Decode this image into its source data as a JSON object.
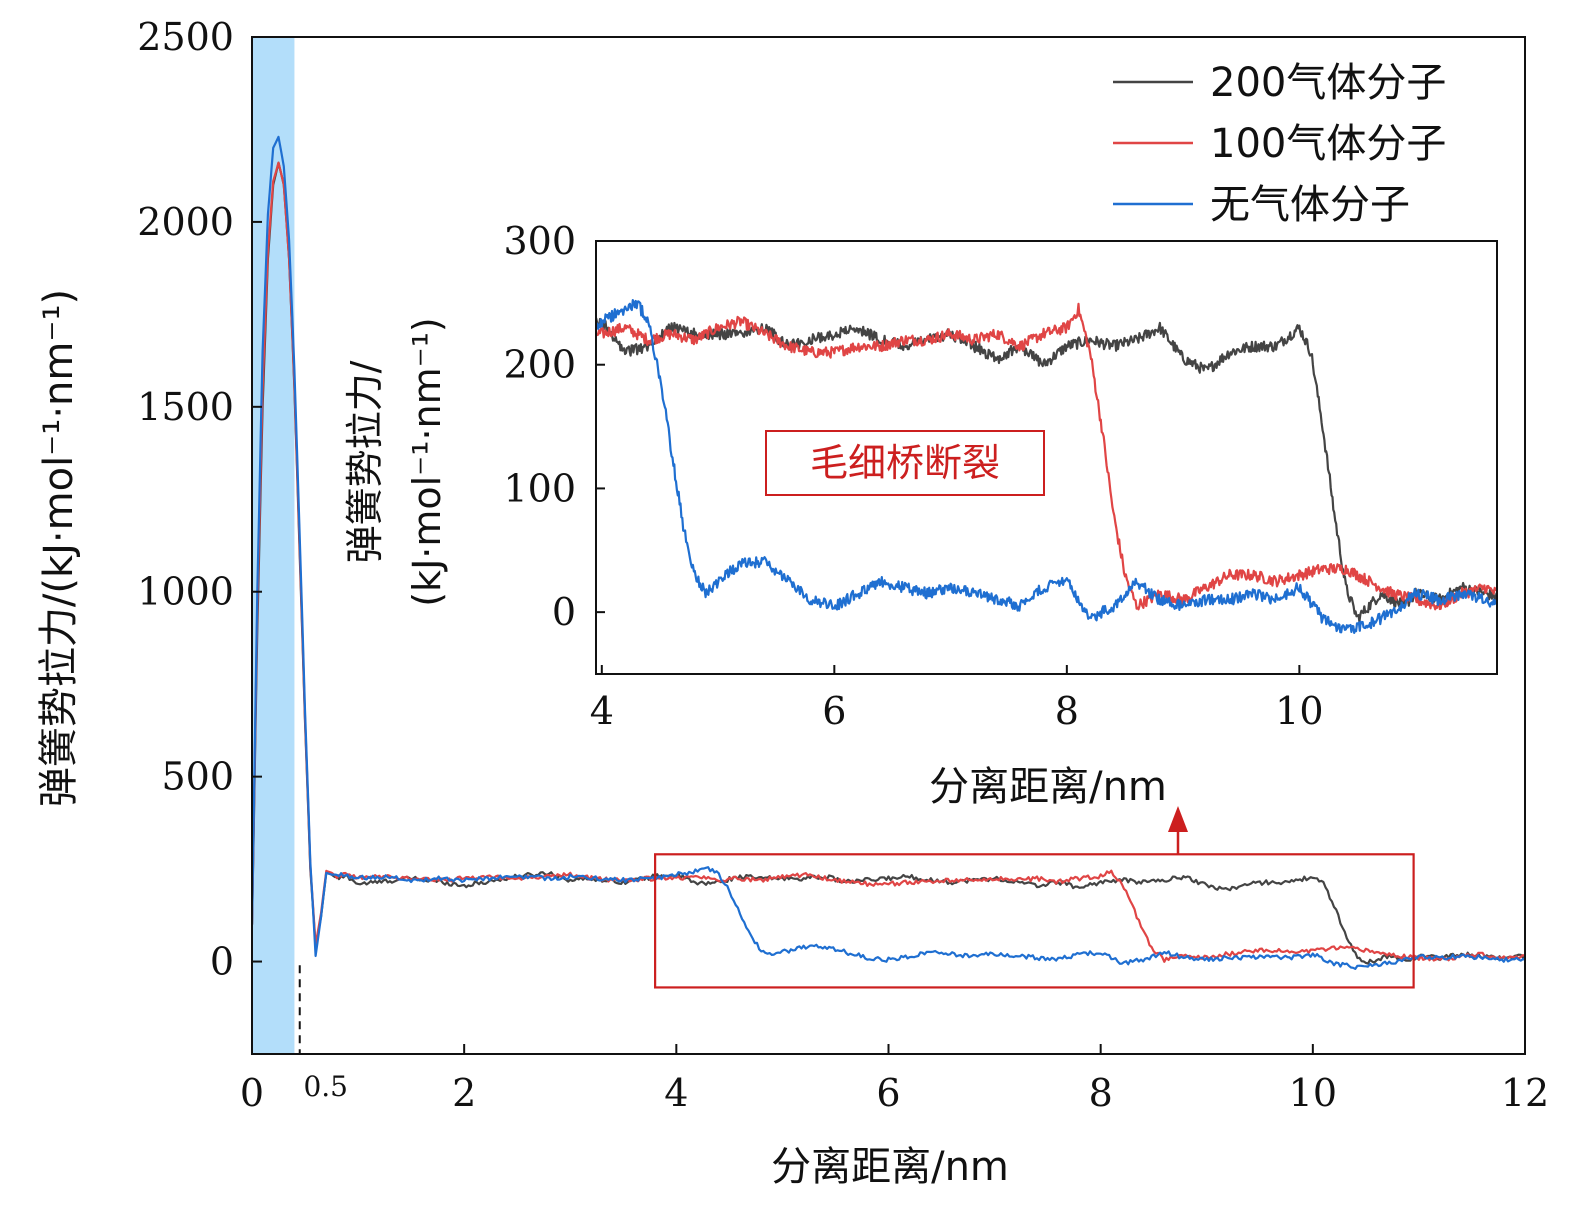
{
  "chart_data": {
    "type": "line",
    "main": {
      "xlabel": "分离距离/nm",
      "ylabel": "弹簧势拉力/(kJ·mol⁻¹·nm⁻¹)",
      "xlim": [
        0,
        12
      ],
      "ylim": [
        -250,
        2500
      ],
      "xticks": [
        0,
        2,
        4,
        6,
        8,
        10,
        12
      ],
      "yticks": [
        0,
        500,
        1000,
        1500,
        2000,
        2500
      ],
      "extra_tick_label": "0.5",
      "extra_tick_value": 0.45,
      "shaded_region": {
        "x0": 0,
        "x1": 0.4,
        "color": "#b3defa"
      },
      "highlight_box": {
        "x0": 3.8,
        "x1": 10.95,
        "y0": -70,
        "y1": 290,
        "color": "#cc1f1f"
      }
    },
    "inset": {
      "xlabel": "分离距离/nm",
      "ylabel_line1": "弹簧势拉力/",
      "ylabel_line2": "(kJ·mol⁻¹·nm⁻¹)",
      "xlim": [
        3.95,
        11.7
      ],
      "ylim": [
        -50,
        300
      ],
      "xticks": [
        4,
        6,
        8,
        10
      ],
      "yticks": [
        0,
        100,
        200,
        300
      ],
      "annotation": "毛细桥断裂"
    },
    "series": [
      {
        "name": "200气体分子",
        "color": "#444444",
        "x": [
          0,
          0.05,
          0.1,
          0.15,
          0.2,
          0.25,
          0.3,
          0.35,
          0.4,
          0.45,
          0.5,
          0.55,
          0.6,
          0.65,
          0.7,
          0.75,
          0.8,
          0.9,
          1.0,
          1.2,
          1.5,
          1.8,
          2.0,
          2.2,
          2.5,
          2.8,
          3.0,
          3.2,
          3.5,
          3.8,
          4.0,
          4.2,
          4.4,
          4.6,
          4.8,
          5.0,
          5.2,
          5.4,
          5.6,
          5.8,
          6.0,
          6.2,
          6.4,
          6.6,
          6.8,
          7.0,
          7.2,
          7.4,
          7.6,
          7.8,
          8.0,
          8.2,
          8.4,
          8.6,
          8.8,
          9.0,
          9.2,
          9.4,
          9.6,
          9.8,
          10.0,
          10.1,
          10.2,
          10.3,
          10.4,
          10.5,
          10.6,
          10.7,
          10.8,
          10.9,
          11.0,
          11.2,
          11.4,
          11.6,
          11.8,
          12.0
        ],
        "y": [
          100,
          900,
          1500,
          1900,
          2100,
          2160,
          2100,
          1900,
          1550,
          1100,
          650,
          250,
          40,
          120,
          240,
          235,
          225,
          230,
          210,
          215,
          225,
          215,
          205,
          215,
          230,
          240,
          220,
          225,
          215,
          230,
          235,
          210,
          215,
          230,
          225,
          225,
          225,
          230,
          215,
          220,
          225,
          230,
          220,
          215,
          220,
          225,
          215,
          205,
          215,
          200,
          215,
          220,
          215,
          220,
          230,
          205,
          195,
          210,
          215,
          215,
          230,
          210,
          150,
          80,
          20,
          -5,
          5,
          15,
          10,
          5,
          15,
          10,
          20,
          15,
          10,
          15
        ]
      },
      {
        "name": "100气体分子",
        "color": "#e04545",
        "x": [
          0,
          0.05,
          0.1,
          0.15,
          0.2,
          0.25,
          0.3,
          0.35,
          0.4,
          0.45,
          0.5,
          0.55,
          0.6,
          0.65,
          0.7,
          0.75,
          0.8,
          0.9,
          1.0,
          1.2,
          1.5,
          1.8,
          2.0,
          2.2,
          2.5,
          2.8,
          3.0,
          3.2,
          3.5,
          3.8,
          4.0,
          4.2,
          4.4,
          4.6,
          4.8,
          5.0,
          5.2,
          5.4,
          5.6,
          5.8,
          6.0,
          6.2,
          6.4,
          6.6,
          6.8,
          7.0,
          7.2,
          7.4,
          7.6,
          7.8,
          8.0,
          8.1,
          8.2,
          8.3,
          8.4,
          8.5,
          8.6,
          8.7,
          8.8,
          9.0,
          9.2,
          9.4,
          9.6,
          9.8,
          10.0,
          10.2,
          10.4,
          10.6,
          10.8,
          11.0,
          11.2,
          11.4,
          11.6,
          11.8,
          12.0
        ],
        "y": [
          100,
          950,
          1550,
          1920,
          2110,
          2160,
          2100,
          1900,
          1560,
          1120,
          660,
          260,
          45,
          130,
          245,
          240,
          230,
          235,
          225,
          230,
          225,
          220,
          225,
          230,
          225,
          230,
          235,
          225,
          220,
          225,
          225,
          230,
          220,
          225,
          220,
          230,
          235,
          225,
          215,
          210,
          210,
          215,
          215,
          220,
          220,
          225,
          220,
          225,
          215,
          225,
          230,
          245,
          210,
          150,
          80,
          30,
          5,
          10,
          15,
          10,
          20,
          30,
          30,
          25,
          30,
          35,
          35,
          25,
          15,
          10,
          5,
          15,
          20,
          10,
          15
        ]
      },
      {
        "name": "无气体分子",
        "color": "#1f6fd1",
        "x": [
          0,
          0.05,
          0.1,
          0.15,
          0.2,
          0.25,
          0.3,
          0.35,
          0.4,
          0.45,
          0.5,
          0.55,
          0.6,
          0.65,
          0.7,
          0.75,
          0.8,
          0.9,
          1.0,
          1.2,
          1.5,
          1.8,
          2.0,
          2.2,
          2.5,
          2.8,
          3.0,
          3.2,
          3.5,
          3.8,
          4.0,
          4.2,
          4.3,
          4.4,
          4.5,
          4.6,
          4.7,
          4.8,
          4.9,
          5.0,
          5.2,
          5.4,
          5.6,
          5.8,
          6.0,
          6.2,
          6.4,
          6.6,
          6.8,
          7.0,
          7.2,
          7.4,
          7.6,
          7.8,
          8.0,
          8.2,
          8.4,
          8.6,
          8.8,
          9.0,
          9.2,
          9.4,
          9.6,
          9.8,
          10.0,
          10.2,
          10.4,
          10.6,
          10.8,
          11.0,
          11.2,
          11.4,
          11.6,
          11.8,
          12.0
        ],
        "y": [
          100,
          1000,
          1650,
          2020,
          2200,
          2230,
          2150,
          1950,
          1600,
          1150,
          680,
          270,
          15,
          120,
          240,
          235,
          235,
          230,
          225,
          230,
          220,
          225,
          220,
          225,
          230,
          225,
          230,
          225,
          220,
          225,
          235,
          245,
          250,
          235,
          190,
          130,
          70,
          30,
          15,
          25,
          40,
          40,
          25,
          10,
          5,
          15,
          25,
          20,
          15,
          20,
          15,
          10,
          5,
          20,
          25,
          -5,
          5,
          25,
          10,
          5,
          10,
          10,
          15,
          10,
          20,
          -5,
          -15,
          -10,
          0,
          15,
          10,
          15,
          10,
          5,
          5
        ]
      }
    ]
  }
}
